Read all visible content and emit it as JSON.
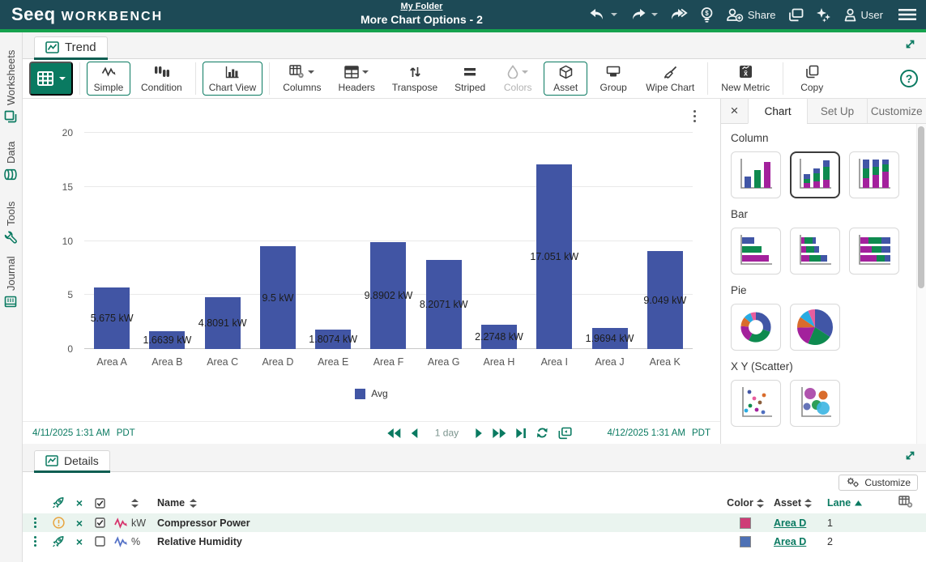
{
  "header": {
    "logo_seeq": "Seeq",
    "logo_workbench": "WORKBENCH",
    "folder_link": "My Folder",
    "worksheet_title": "More Chart Options - 2",
    "share_label": "Share",
    "user_label": "User"
  },
  "left_rail": {
    "items": [
      {
        "label": "Worksheets",
        "icon": "worksheets-icon"
      },
      {
        "label": "Data",
        "icon": "database-icon"
      },
      {
        "label": "Tools",
        "icon": "wrench-icon"
      },
      {
        "label": "Journal",
        "icon": "journal-icon"
      }
    ]
  },
  "trend": {
    "tab_label": "Trend"
  },
  "toolbar": {
    "buttons": [
      {
        "label": "Simple",
        "active": true
      },
      {
        "label": "Condition",
        "active": false
      },
      {
        "label": "Chart View",
        "active": true
      },
      {
        "label": "Columns",
        "caret": true
      },
      {
        "label": "Headers",
        "caret": true
      },
      {
        "label": "Transpose"
      },
      {
        "label": "Striped"
      },
      {
        "label": "Colors",
        "caret": true,
        "disabled": true
      },
      {
        "label": "Asset",
        "active": true
      },
      {
        "label": "Group"
      },
      {
        "label": "Wipe Chart"
      },
      {
        "label": "New Metric"
      },
      {
        "label": "Copy"
      }
    ],
    "help_label": "?"
  },
  "chart_data": {
    "type": "bar",
    "title": "",
    "categories": [
      "Area A",
      "Area B",
      "Area C",
      "Area D",
      "Area E",
      "Area F",
      "Area G",
      "Area H",
      "Area I",
      "Area J",
      "Area K"
    ],
    "values": [
      5.675,
      1.6639,
      4.8091,
      9.5,
      1.8074,
      9.8902,
      8.2071,
      2.2748,
      17.051,
      1.9694,
      9.049
    ],
    "bar_labels": [
      "5.675 kW",
      "1.6639 kW",
      "4.8091 kW",
      "9.5 kW",
      "1.8074 kW",
      "9.8902 kW",
      "8.2071 kW",
      "2.2748 kW",
      "17.051 kW",
      "1.9694 kW",
      "9.049 kW"
    ],
    "unit": "kW",
    "legend": [
      "Avg"
    ],
    "legend_position": "bottom",
    "ylim": [
      0,
      20
    ],
    "yticks": [
      0,
      5,
      10,
      15,
      20
    ],
    "xlabel": "",
    "ylabel": "",
    "grid": true,
    "bar_color": "#4155a4"
  },
  "timebar": {
    "start": "4/11/2025 1:31 AM",
    "start_tz": "PDT",
    "duration": "1 day",
    "end": "4/12/2025 1:31 AM",
    "end_tz": "PDT"
  },
  "panel": {
    "tabs": [
      {
        "label": "Chart",
        "active": true
      },
      {
        "label": "Set Up",
        "active": false
      },
      {
        "label": "Customize",
        "active": false
      }
    ],
    "sections": [
      {
        "title": "Column",
        "options": [
          "grouped",
          "stacked",
          "stacked-100"
        ],
        "selected": "stacked"
      },
      {
        "title": "Bar",
        "options": [
          "plain",
          "stacked",
          "stacked-100"
        ],
        "selected": null
      },
      {
        "title": "Pie",
        "options": [
          "donut",
          "pie"
        ],
        "selected": null
      },
      {
        "title": "X Y (Scatter)",
        "options": [
          "scatter",
          "bubble"
        ],
        "selected": null
      }
    ]
  },
  "details": {
    "tab_label": "Details",
    "customize_label": "Customize",
    "columns": {
      "name": "Name",
      "color": "Color",
      "asset": "Asset",
      "lane": "Lane"
    },
    "lane_sort": "asc",
    "rows": [
      {
        "status": "warning",
        "checked": true,
        "unit": "kW",
        "name": "Compressor Power",
        "signal_color": "#d6336c",
        "color": "#ce3d77",
        "asset": "Area D",
        "lane": "1",
        "highlight": true
      },
      {
        "status": "rocket",
        "checked": false,
        "unit": "%",
        "name": "Relative Humidity",
        "signal_color": "#5572c7",
        "color": "#4e71b5",
        "asset": "Area D",
        "lane": "2",
        "highlight": false
      }
    ]
  },
  "colors": {
    "accent_teal": "#0a7a61",
    "header_bg": "#1d4a56",
    "green_bar": "#16a24e",
    "bar_fill": "#4155a4",
    "warning_orange": "#e8a33d",
    "thumb_blue": "#4156a6",
    "thumb_green": "#0e8a4f",
    "thumb_magenta": "#a3219c",
    "thumb_orange": "#d96c2c",
    "thumb_cyan": "#29abe2",
    "thumb_pink": "#e85d9e"
  }
}
